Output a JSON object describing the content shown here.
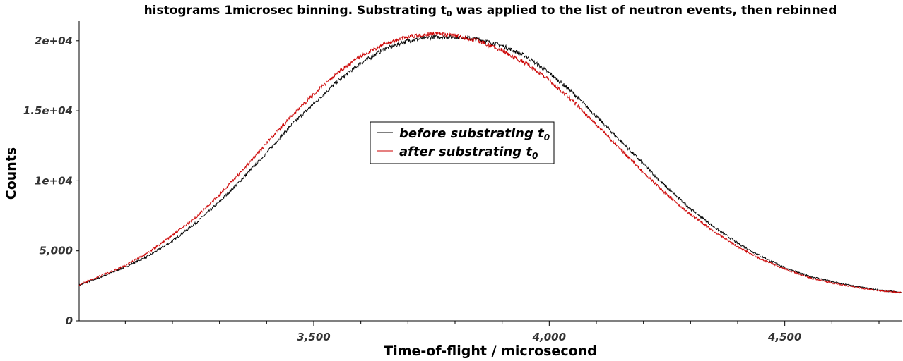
{
  "chart_data": {
    "type": "line",
    "title_main": "histograms 1microsec binning. Substrating t",
    "title_sub": "0",
    "title_rest": " was applied to the list of neutron events, then rebinned",
    "xlabel": "Time-of-flight / microsecond",
    "ylabel": "Counts",
    "xlim": [
      3002,
      4748
    ],
    "ylim": [
      0,
      21400
    ],
    "x_ticks": [
      3500,
      4000,
      4500
    ],
    "x_tick_labels": [
      "3,500",
      "4,000",
      "4,500"
    ],
    "x_minor_step": 100,
    "y_ticks": [
      0,
      5000,
      10000,
      15000,
      20000
    ],
    "y_tick_labels": [
      "0",
      "5,000",
      "1e+04",
      "1.5e+04",
      "2e+04"
    ],
    "grid": false,
    "legend_position": "center",
    "series": [
      {
        "name_main": "before substrating t",
        "name_sub": "0",
        "color": "#000000",
        "x": [
          3000,
          3050,
          3100,
          3150,
          3200,
          3250,
          3300,
          3350,
          3400,
          3450,
          3500,
          3550,
          3600,
          3650,
          3700,
          3750,
          3800,
          3850,
          3900,
          3950,
          4000,
          4050,
          4100,
          4150,
          4200,
          4250,
          4300,
          4350,
          4400,
          4450,
          4500,
          4550,
          4600,
          4650,
          4700,
          4750
        ],
        "values": [
          2500,
          3150,
          3850,
          4650,
          5700,
          7000,
          8500,
          10200,
          12000,
          13900,
          15500,
          17100,
          18400,
          19400,
          20000,
          20250,
          20300,
          20100,
          19650,
          18900,
          17700,
          16300,
          14600,
          12900,
          11200,
          9500,
          8000,
          6700,
          5550,
          4600,
          3800,
          3200,
          2800,
          2450,
          2200,
          2000
        ]
      },
      {
        "name_main": "after substrating t",
        "name_sub": "0",
        "color": "#cc0000",
        "x": [
          3000,
          3050,
          3100,
          3150,
          3200,
          3250,
          3300,
          3350,
          3400,
          3450,
          3500,
          3550,
          3600,
          3650,
          3700,
          3750,
          3800,
          3850,
          3900,
          3950,
          4000,
          4050,
          4100,
          4150,
          4200,
          4250,
          4300,
          4350,
          4400,
          4450,
          4500,
          4550,
          4600,
          4650,
          4700,
          4750
        ],
        "values": [
          2550,
          3250,
          3950,
          4900,
          6100,
          7400,
          9000,
          10800,
          12700,
          14500,
          16200,
          17700,
          18900,
          19800,
          20300,
          20500,
          20350,
          20000,
          19300,
          18400,
          17200,
          15700,
          14000,
          12300,
          10600,
          9000,
          7600,
          6350,
          5300,
          4400,
          3700,
          3100,
          2700,
          2400,
          2150,
          2000
        ]
      }
    ]
  }
}
